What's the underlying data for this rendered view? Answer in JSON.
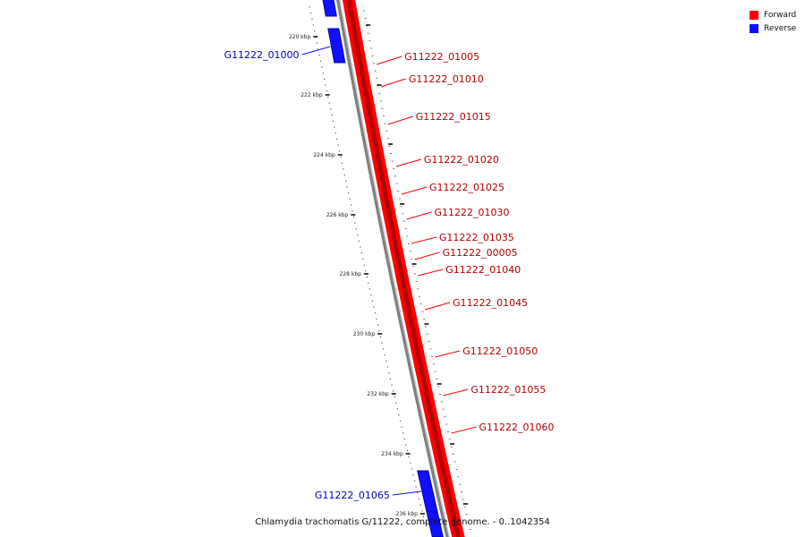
{
  "legend": {
    "forward": {
      "label": "Forward",
      "color": "#ff0000"
    },
    "reverse": {
      "label": "Reverse",
      "color": "#1010ff"
    }
  },
  "title": "Chlamydia trachomatis G/11222, complete genome. - 0..1042354",
  "scale_labels": [
    "220 kbp",
    "222 kbp",
    "224 kbp",
    "226 kbp",
    "228 kbp",
    "230 kbp",
    "232 kbp",
    "234 kbp",
    "236 kbp"
  ],
  "genes_forward": [
    "G11222_01005",
    "G11222_01010",
    "G11222_01015",
    "G11222_01020",
    "G11222_01025",
    "G11222_01030",
    "G11222_01035",
    "G11222_00005",
    "G11222_01040",
    "G11222_01045",
    "G11222_01050",
    "G11222_01055",
    "G11222_01060"
  ],
  "genes_reverse": [
    "G11222_01000",
    "G11222_01065"
  ],
  "colors": {
    "forward_dark": "#b30000",
    "reverse_dark": "#0000b0",
    "backbone": "#808080"
  }
}
